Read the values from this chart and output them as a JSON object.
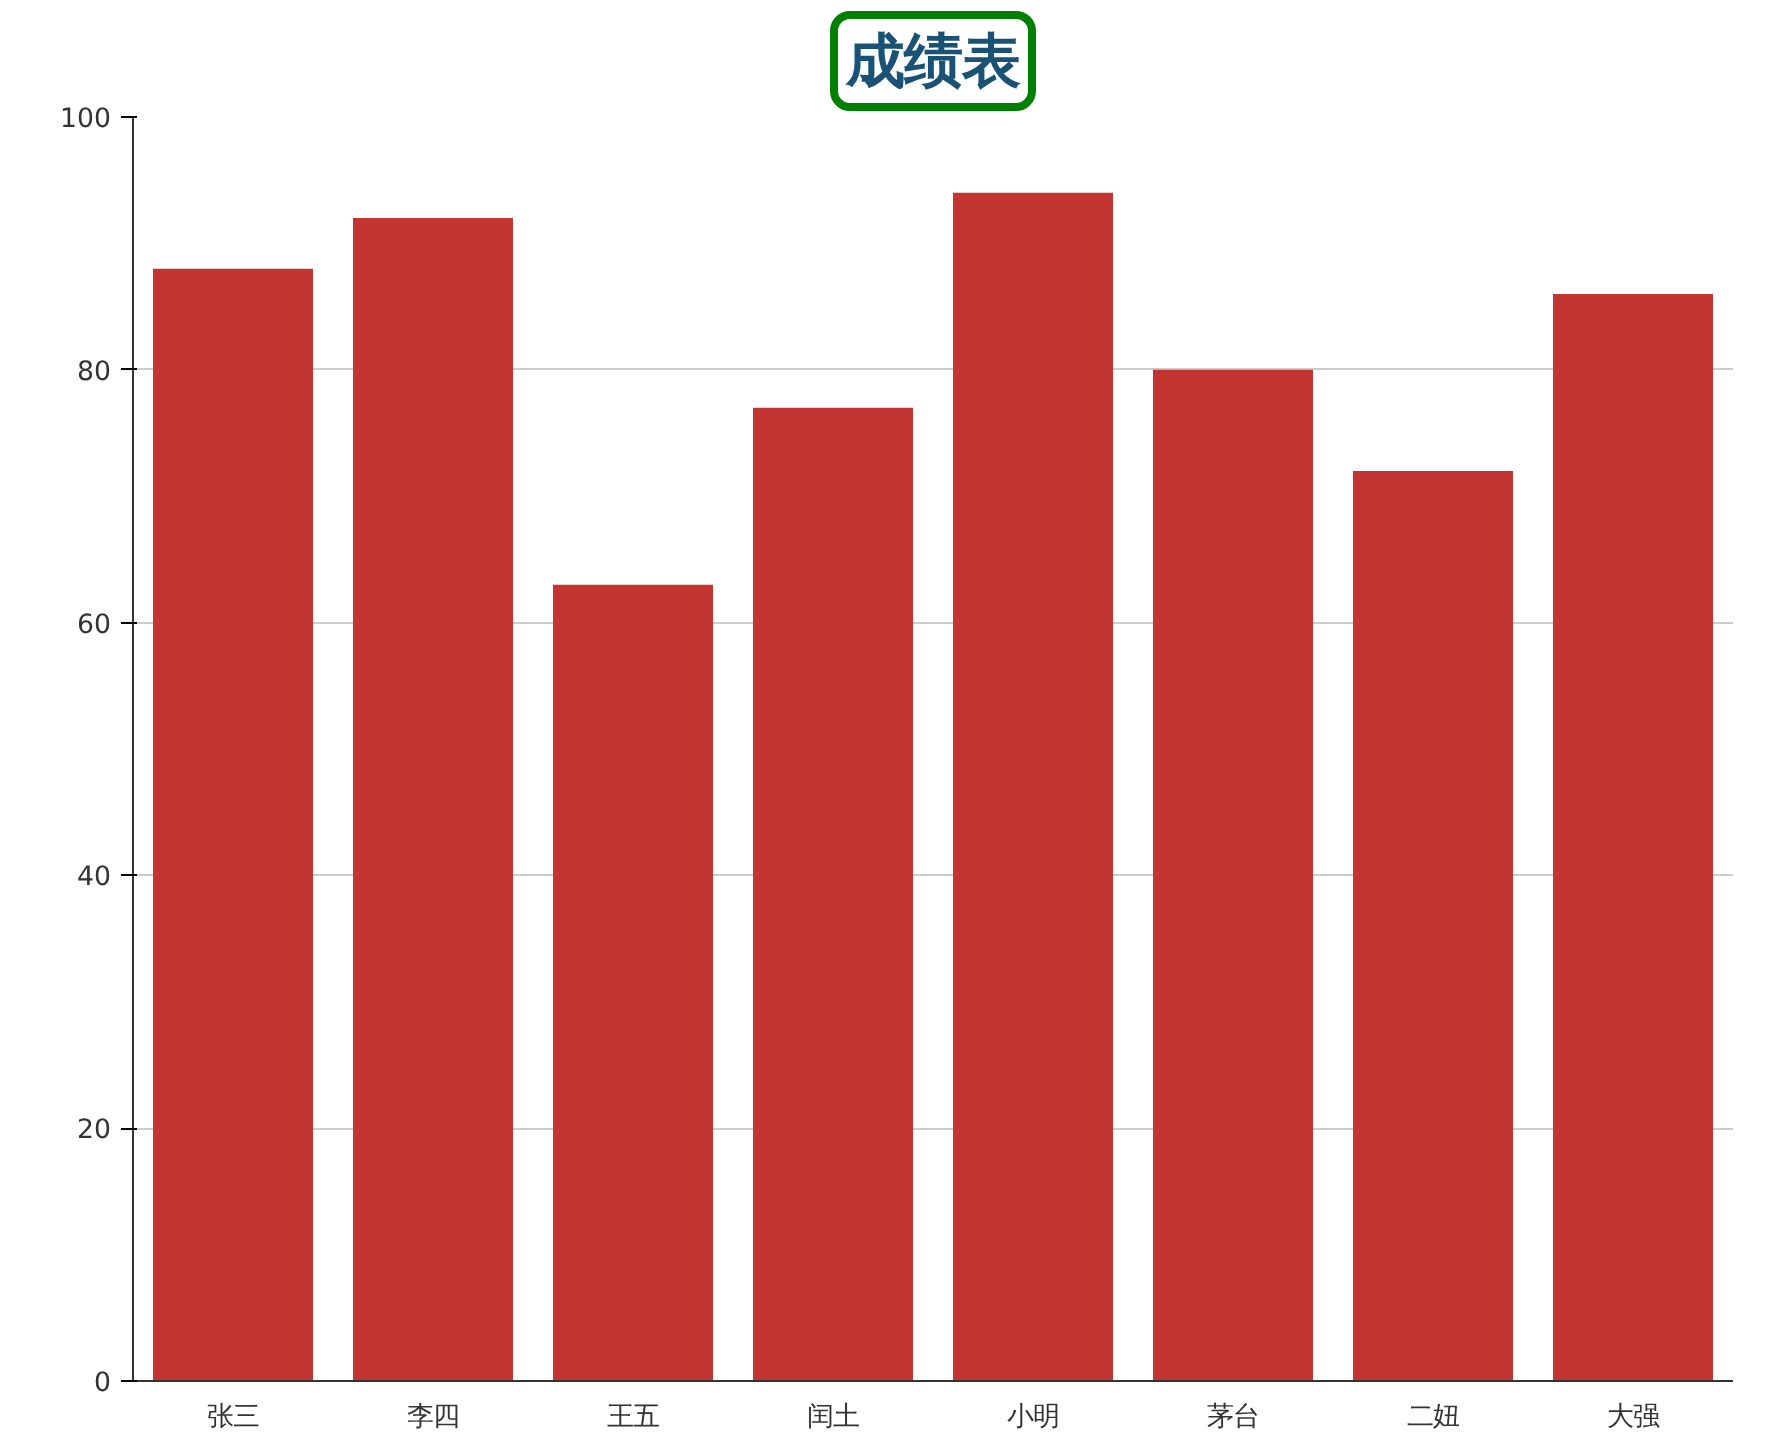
{
  "chart_data": {
    "type": "bar",
    "title": "成绩表",
    "categories": [
      "张三",
      "李四",
      "王五",
      "闰土",
      "小明",
      "茅台",
      "二妞",
      "大强"
    ],
    "values": [
      88,
      92,
      63,
      77,
      94,
      80,
      72,
      86
    ],
    "color": "#c23531",
    "ylim": [
      0,
      100
    ],
    "yticks": [
      0,
      20,
      40,
      60,
      80,
      100
    ],
    "grid": "y"
  }
}
